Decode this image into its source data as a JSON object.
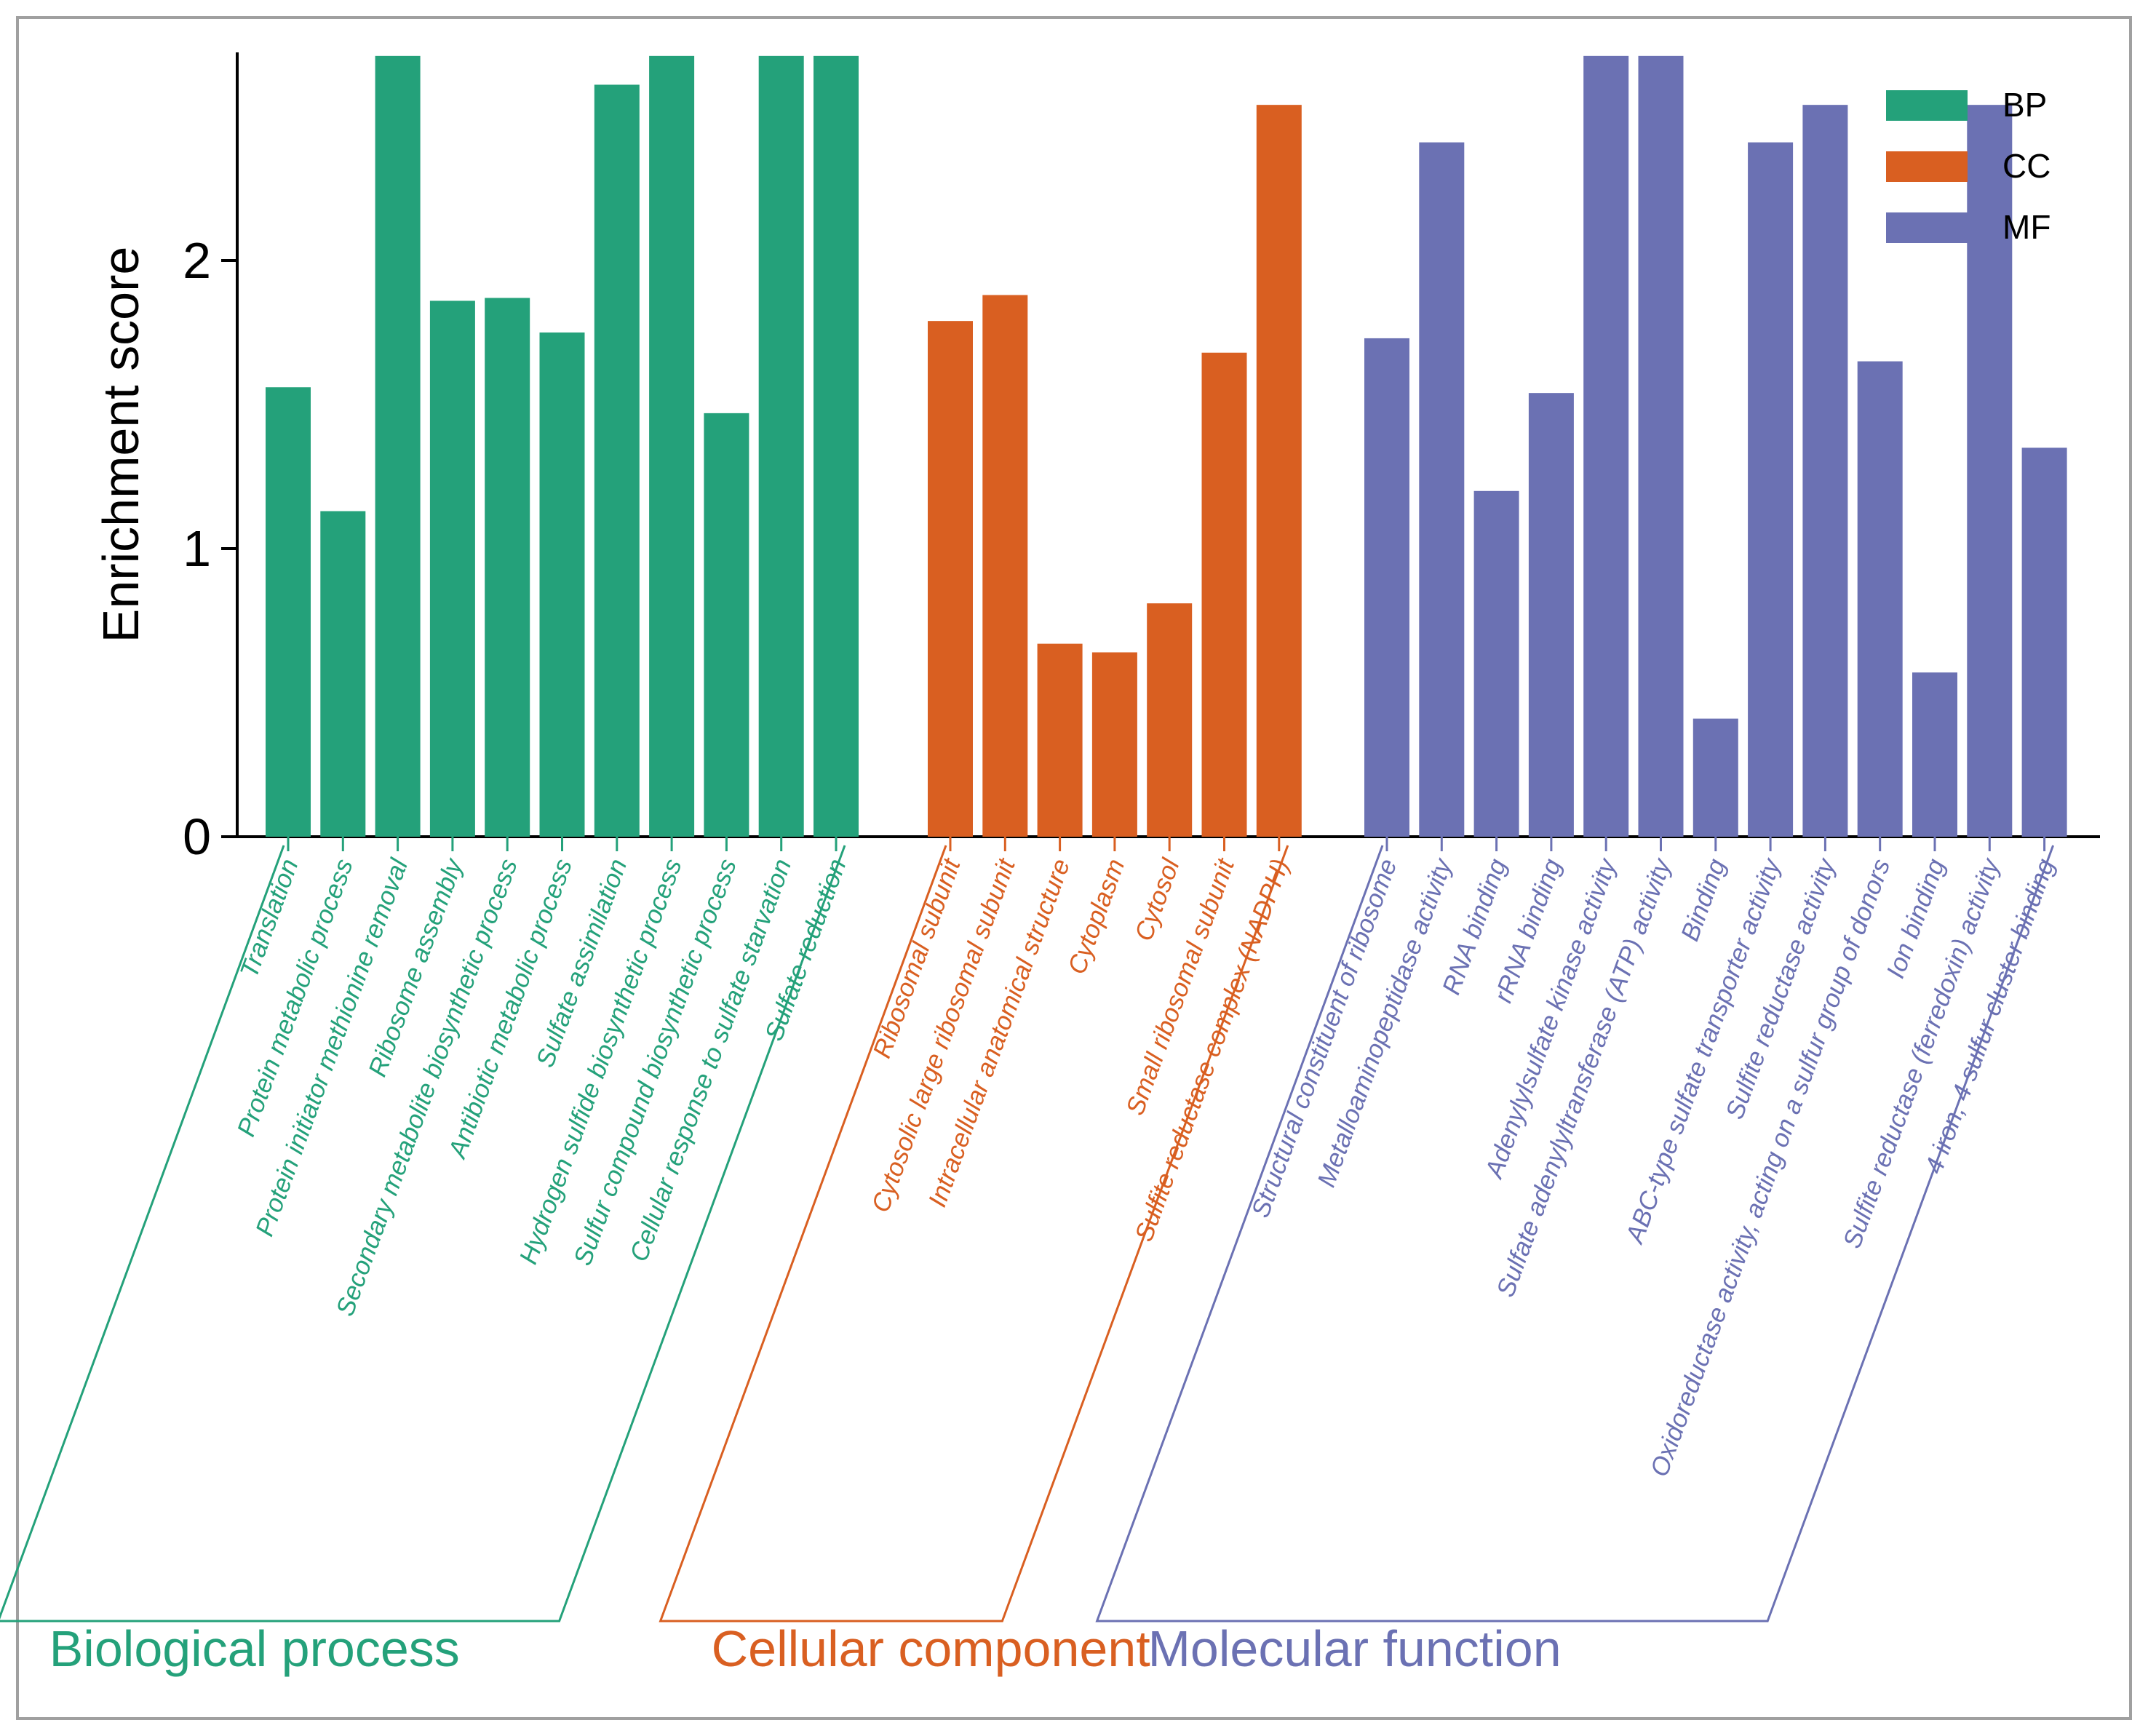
{
  "chart_data": {
    "type": "bar",
    "ylabel": "Enrichment score",
    "ylim": [
      0,
      2.7
    ],
    "yticks": [
      0,
      1,
      2
    ],
    "grid": false,
    "legend_position": "top-right",
    "colors": {
      "BP": "#24a17a",
      "CC": "#d95f21",
      "MF": "#6b71b3"
    },
    "legend": [
      {
        "key": "BP",
        "label": "BP"
      },
      {
        "key": "CC",
        "label": "CC"
      },
      {
        "key": "MF",
        "label": "MF"
      }
    ],
    "groups": [
      {
        "key": "BP",
        "title": "Biological process",
        "categories": [
          "Translation",
          "Protein metabolic process",
          "Protein initiator methionine removal",
          "Ribosome assembly",
          "Secondary metabolite biosynthetic process",
          "Antibiotic metabolic process",
          "Sulfate assimilation",
          "Hydrogen sulfide biosynthetic process",
          "Sulfur compound biosynthetic process",
          "Cellular response to sulfate starvation",
          "Sulfate reduction"
        ],
        "values": [
          1.56,
          1.13,
          2.71,
          1.86,
          1.87,
          1.75,
          2.61,
          2.71,
          1.47,
          2.71,
          2.71
        ]
      },
      {
        "key": "CC",
        "title": "Cellular component",
        "categories": [
          "Ribosomal subunit",
          "Cytosolic large ribosomal subunit",
          "Intracellular anatomical structure",
          "Cytoplasm",
          "Cytosol",
          "Small ribosomal subunit",
          "Sulfite reductase complex (NADPH)"
        ],
        "values": [
          1.79,
          1.88,
          0.67,
          0.64,
          0.81,
          1.68,
          2.54
        ]
      },
      {
        "key": "MF",
        "title": "Molecular function",
        "categories": [
          "Structural constituent of ribosome",
          "Metalloaminopeptidase activity",
          "RNA binding",
          "rRNA binding",
          "Adenylylsulfate kinase activity",
          "Sulfate adenylyltransferase (ATP) activity",
          "Binding",
          "ABC-type sulfate transporter activity",
          "Sulfite reductase activity",
          "Oxidoreductase activity, acting on a sulfur group of donors",
          "Ion binding",
          "Sulfite reductase (ferredoxin) activity",
          "4 iron, 4 sulfur cluster binding"
        ],
        "values": [
          1.73,
          2.41,
          1.2,
          1.54,
          2.71,
          2.71,
          0.41,
          2.41,
          2.54,
          1.65,
          0.57,
          2.54,
          1.35
        ]
      }
    ]
  }
}
